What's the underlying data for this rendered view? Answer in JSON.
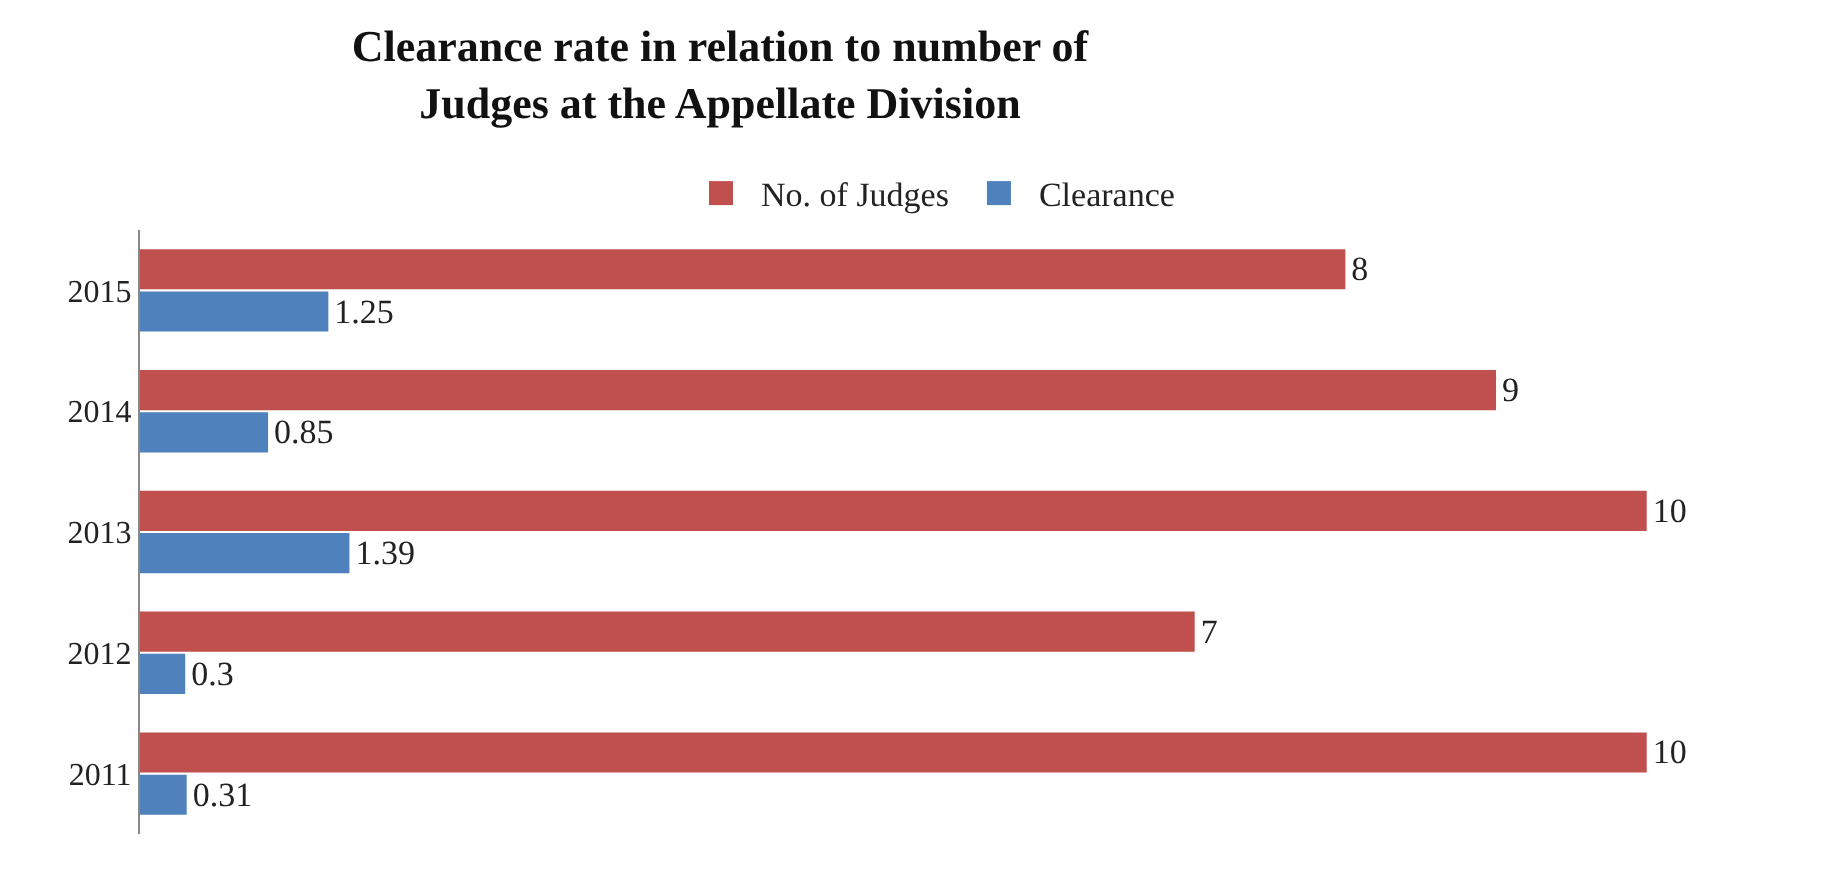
{
  "chart_data": {
    "type": "bar",
    "orientation": "horizontal",
    "title": "Clearance rate in relation to number of Judges at the Appellate Division",
    "categories": [
      "2015",
      "2014",
      "2013",
      "2012",
      "2011"
    ],
    "series": [
      {
        "name": "No. of Judges",
        "color": "#c0504d",
        "values": [
          8,
          9,
          10,
          7,
          10
        ]
      },
      {
        "name": "Clearance",
        "color": "#4f81bd",
        "values": [
          1.25,
          0.85,
          1.39,
          0.3,
          0.31
        ]
      }
    ],
    "data_labels": true,
    "legend": "top"
  }
}
